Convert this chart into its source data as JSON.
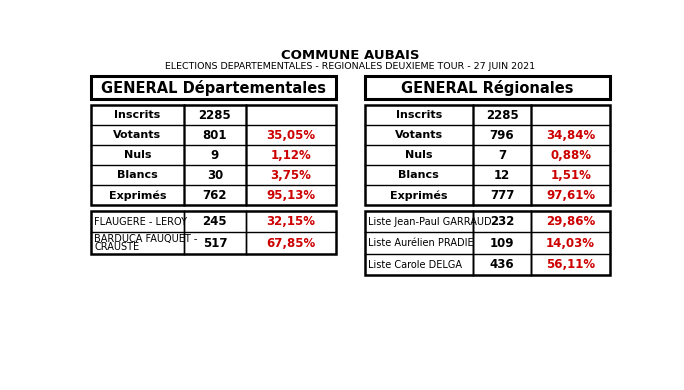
{
  "title1": "COMMUNE AUBAIS",
  "title2": "ELECTIONS DEPARTEMENTALES - REGIONALES DEUXIEME TOUR - 27 JUIN 2021",
  "left_header": "GENERAL Départementales",
  "right_header": "GENERAL Régionales",
  "left_general": [
    [
      "Inscrits",
      "2285",
      ""
    ],
    [
      "Votants",
      "801",
      "35,05%"
    ],
    [
      "Nuls",
      "9",
      "1,12%"
    ],
    [
      "Blancs",
      "30",
      "3,75%"
    ],
    [
      "Exprimés",
      "762",
      "95,13%"
    ]
  ],
  "right_general": [
    [
      "Inscrits",
      "2285",
      ""
    ],
    [
      "Votants",
      "796",
      "34,84%"
    ],
    [
      "Nuls",
      "7",
      "0,88%"
    ],
    [
      "Blancs",
      "12",
      "1,51%"
    ],
    [
      "Exprimés",
      "777",
      "97,61%"
    ]
  ],
  "left_candidates": [
    [
      "FLAUGERE - LEROY",
      "245",
      "32,15%"
    ],
    [
      "BARDUCA FAUQUET -\nCRAUSTE",
      "517",
      "67,85%"
    ]
  ],
  "right_candidates": [
    [
      "Liste Jean-Paul GARRAUD",
      "232",
      "29,86%"
    ],
    [
      "Liste Aurélien PRADIE",
      "109",
      "14,03%"
    ],
    [
      "Liste Carole DELGA",
      "436",
      "56,11%"
    ]
  ],
  "red_color": "#cc0000",
  "black_color": "#000000",
  "bg_color": "#ffffff",
  "border_color": "#000000",
  "title1_fontsize": 9.5,
  "title2_fontsize": 6.8,
  "header_fontsize": 10.5,
  "general_label_fontsize": 8.0,
  "general_val_fontsize": 8.5,
  "general_pct_fontsize": 8.5,
  "cand_label_fontsize": 7.0,
  "cand_val_fontsize": 8.5,
  "cand_pct_fontsize": 8.5
}
